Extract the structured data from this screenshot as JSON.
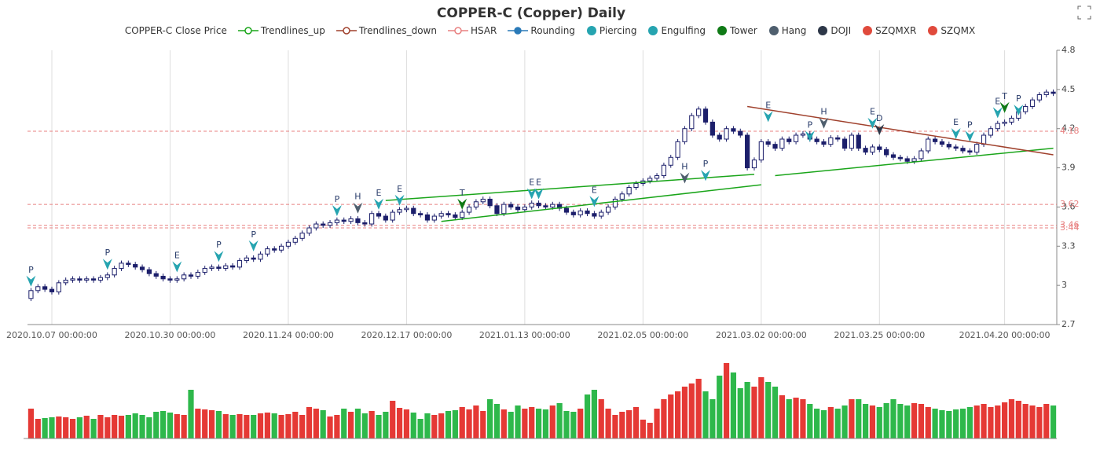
{
  "chart_data": {
    "type": "candlestick",
    "title": "COPPER-C (Copper) Daily",
    "legend": [
      {
        "name": "COPPER-C Close Price",
        "icon": "none"
      },
      {
        "name": "Trendlines_up",
        "color": "#1aa51a",
        "icon": "line-ring"
      },
      {
        "name": "Trendlines_down",
        "color": "#a0412d",
        "icon": "line-ring"
      },
      {
        "name": "HSAR",
        "color": "#e88080",
        "icon": "line-ring"
      },
      {
        "name": "Rounding",
        "color": "#2a7ab8",
        "icon": "line-dot"
      },
      {
        "name": "Piercing",
        "color": "#26a4b0",
        "icon": "dot"
      },
      {
        "name": "Engulfing",
        "color": "#26a4b0",
        "icon": "dot"
      },
      {
        "name": "Tower",
        "color": "#0f7a16",
        "icon": "dot"
      },
      {
        "name": "Hang",
        "color": "#4f5f6e",
        "icon": "dot"
      },
      {
        "name": "DOJI",
        "color": "#2d3748",
        "icon": "dot"
      },
      {
        "name": "SZQMXR",
        "color": "#e04a3c",
        "icon": "dot"
      },
      {
        "name": "SZQMX",
        "color": "#e04a3c",
        "icon": "dot"
      }
    ],
    "categories": [
      null,
      null,
      null,
      "2020.10.07 00:00:00",
      null,
      null,
      null,
      null,
      null,
      null,
      null,
      null,
      null,
      null,
      null,
      null,
      null,
      null,
      null,
      null,
      "2020.10.30 00:00:00",
      null,
      null,
      null,
      null,
      null,
      null,
      null,
      null,
      null,
      null,
      null,
      null,
      null,
      null,
      null,
      null,
      "2020.11.24 00:00:00",
      null,
      null,
      null,
      null,
      null,
      null,
      null,
      null,
      null,
      null,
      null,
      null,
      null,
      null,
      null,
      null,
      "2020.12.17 00:00:00",
      null,
      null,
      null,
      null,
      null,
      null,
      null,
      null,
      null,
      null,
      null,
      null,
      null,
      null,
      null,
      null,
      "2021.01.13 00:00:00",
      null,
      null,
      null,
      null,
      null,
      null,
      null,
      null,
      null,
      null,
      null,
      null,
      null,
      null,
      null,
      null,
      "2021.02.05 00:00:00",
      null,
      null,
      null,
      null,
      null,
      null,
      null,
      null,
      null,
      null,
      null,
      null,
      null,
      null,
      null,
      null,
      "2021.03.02 00:00:00",
      null,
      null,
      null,
      null,
      null,
      null,
      null,
      null,
      null,
      null,
      null,
      null,
      null,
      null,
      null,
      null,
      "2021.03.25 00:00:00",
      null,
      null,
      null,
      null,
      null,
      null,
      null,
      null,
      null,
      null,
      null,
      null,
      null,
      null,
      null,
      null,
      null,
      "2021.04.20 00:00:00",
      null,
      null,
      null,
      null,
      null,
      null,
      null
    ],
    "open": [
      2.9,
      2.96,
      2.99,
      2.97,
      2.95,
      3.02,
      3.04,
      3.05,
      3.04,
      3.05,
      3.04,
      3.06,
      3.08,
      3.13,
      3.17,
      3.16,
      3.14,
      3.12,
      3.09,
      3.07,
      3.05,
      3.04,
      3.05,
      3.08,
      3.07,
      3.1,
      3.13,
      3.14,
      3.13,
      3.15,
      3.14,
      3.19,
      3.21,
      3.2,
      3.24,
      3.28,
      3.27,
      3.3,
      3.33,
      3.36,
      3.4,
      3.44,
      3.47,
      3.46,
      3.48,
      3.5,
      3.49,
      3.51,
      3.48,
      3.47,
      3.55,
      3.53,
      3.5,
      3.56,
      3.58,
      3.59,
      3.55,
      3.54,
      3.5,
      3.53,
      3.55,
      3.54,
      3.52,
      3.56,
      3.6,
      3.64,
      3.66,
      3.61,
      3.55,
      3.62,
      3.6,
      3.58,
      3.6,
      3.63,
      3.61,
      3.6,
      3.62,
      3.59,
      3.56,
      3.54,
      3.57,
      3.55,
      3.53,
      3.56,
      3.6,
      3.66,
      3.7,
      3.75,
      3.78,
      3.8,
      3.82,
      3.84,
      3.92,
      3.98,
      4.1,
      4.2,
      4.3,
      4.35,
      4.25,
      4.15,
      4.12,
      4.2,
      4.18,
      4.15,
      3.9,
      3.96,
      4.1,
      4.08,
      4.05,
      4.12,
      4.1,
      4.15,
      4.16,
      4.12,
      4.1,
      4.08,
      4.13,
      4.12,
      4.05,
      4.15,
      4.05,
      4.02,
      4.06,
      4.04,
      4.0,
      3.98,
      3.97,
      3.95,
      3.97,
      4.03,
      4.12,
      4.1,
      4.08,
      4.06,
      4.05,
      4.03,
      4.02,
      4.08,
      4.15,
      4.2,
      4.24,
      4.25,
      4.28,
      4.33,
      4.37,
      4.42,
      4.46,
      4.48
    ],
    "high": [
      2.98,
      3.01,
      3.01,
      2.99,
      3.04,
      3.06,
      3.07,
      3.07,
      3.07,
      3.07,
      3.08,
      3.1,
      3.15,
      3.19,
      3.19,
      3.18,
      3.16,
      3.14,
      3.11,
      3.09,
      3.07,
      3.07,
      3.1,
      3.1,
      3.12,
      3.15,
      3.16,
      3.16,
      3.17,
      3.17,
      3.21,
      3.23,
      3.23,
      3.26,
      3.3,
      3.3,
      3.32,
      3.35,
      3.38,
      3.42,
      3.46,
      3.49,
      3.49,
      3.5,
      3.52,
      3.52,
      3.53,
      3.53,
      3.5,
      3.57,
      3.57,
      3.55,
      3.58,
      3.6,
      3.61,
      3.61,
      3.57,
      3.56,
      3.55,
      3.57,
      3.57,
      3.56,
      3.58,
      3.62,
      3.66,
      3.68,
      3.68,
      3.63,
      3.64,
      3.64,
      3.62,
      3.62,
      3.65,
      3.65,
      3.63,
      3.64,
      3.64,
      3.61,
      3.58,
      3.59,
      3.59,
      3.57,
      3.58,
      3.62,
      3.68,
      3.72,
      3.77,
      3.8,
      3.82,
      3.84,
      3.86,
      3.94,
      4.0,
      4.12,
      4.22,
      4.32,
      4.37,
      4.37,
      4.27,
      4.17,
      4.22,
      4.22,
      4.2,
      4.17,
      3.98,
      4.12,
      4.12,
      4.1,
      4.14,
      4.14,
      4.17,
      4.18,
      4.18,
      4.14,
      4.12,
      4.15,
      4.15,
      4.14,
      4.17,
      4.17,
      4.07,
      4.08,
      4.08,
      4.06,
      4.02,
      4.0,
      3.99,
      3.99,
      4.05,
      4.14,
      4.14,
      4.12,
      4.1,
      4.08,
      4.07,
      4.05,
      4.1,
      4.17,
      4.22,
      4.26,
      4.27,
      4.3,
      4.35,
      4.39,
      4.44,
      4.48,
      4.5,
      4.5
    ],
    "low": [
      2.88,
      2.94,
      2.95,
      2.93,
      2.93,
      3.0,
      3.02,
      3.02,
      3.02,
      3.02,
      3.02,
      3.04,
      3.06,
      3.11,
      3.14,
      3.12,
      3.1,
      3.07,
      3.05,
      3.03,
      3.02,
      3.02,
      3.03,
      3.05,
      3.05,
      3.08,
      3.11,
      3.11,
      3.11,
      3.12,
      3.12,
      3.17,
      3.18,
      3.18,
      3.22,
      3.25,
      3.25,
      3.28,
      3.31,
      3.34,
      3.38,
      3.42,
      3.44,
      3.44,
      3.46,
      3.47,
      3.47,
      3.46,
      3.45,
      3.45,
      3.51,
      3.48,
      3.48,
      3.54,
      3.56,
      3.53,
      3.52,
      3.48,
      3.48,
      3.51,
      3.52,
      3.5,
      3.5,
      3.54,
      3.58,
      3.62,
      3.59,
      3.53,
      3.53,
      3.58,
      3.56,
      3.56,
      3.58,
      3.59,
      3.58,
      3.58,
      3.57,
      3.54,
      3.52,
      3.52,
      3.53,
      3.51,
      3.51,
      3.54,
      3.58,
      3.64,
      3.68,
      3.73,
      3.76,
      3.78,
      3.8,
      3.82,
      3.9,
      3.96,
      4.08,
      4.18,
      4.28,
      4.23,
      4.13,
      4.1,
      4.1,
      4.16,
      4.13,
      3.88,
      3.88,
      3.94,
      4.06,
      4.03,
      4.03,
      4.08,
      4.08,
      4.13,
      4.1,
      4.08,
      4.06,
      4.06,
      4.1,
      4.03,
      4.03,
      4.03,
      4.0,
      4.0,
      4.02,
      3.98,
      3.96,
      3.95,
      3.93,
      3.93,
      3.95,
      4.01,
      4.08,
      4.06,
      4.04,
      4.03,
      4.01,
      4.0,
      4.0,
      4.06,
      4.13,
      4.18,
      4.22,
      4.23,
      4.26,
      4.31,
      4.35,
      4.4,
      4.44,
      4.45
    ],
    "close": [
      2.96,
      2.99,
      2.97,
      2.95,
      3.02,
      3.04,
      3.05,
      3.04,
      3.05,
      3.04,
      3.06,
      3.08,
      3.13,
      3.17,
      3.16,
      3.14,
      3.12,
      3.09,
      3.07,
      3.05,
      3.04,
      3.05,
      3.08,
      3.07,
      3.1,
      3.13,
      3.14,
      3.13,
      3.15,
      3.14,
      3.19,
      3.21,
      3.2,
      3.24,
      3.28,
      3.27,
      3.3,
      3.33,
      3.36,
      3.4,
      3.44,
      3.47,
      3.46,
      3.48,
      3.5,
      3.49,
      3.51,
      3.48,
      3.47,
      3.55,
      3.53,
      3.5,
      3.56,
      3.58,
      3.59,
      3.55,
      3.54,
      3.5,
      3.53,
      3.55,
      3.54,
      3.52,
      3.56,
      3.6,
      3.64,
      3.66,
      3.61,
      3.55,
      3.62,
      3.6,
      3.58,
      3.6,
      3.63,
      3.61,
      3.6,
      3.62,
      3.59,
      3.56,
      3.54,
      3.57,
      3.55,
      3.53,
      3.56,
      3.6,
      3.66,
      3.7,
      3.75,
      3.78,
      3.8,
      3.82,
      3.84,
      3.92,
      3.98,
      4.1,
      4.2,
      4.3,
      4.35,
      4.25,
      4.15,
      4.12,
      4.2,
      4.18,
      4.15,
      3.9,
      3.96,
      4.1,
      4.08,
      4.05,
      4.12,
      4.1,
      4.15,
      4.16,
      4.12,
      4.1,
      4.08,
      4.13,
      4.12,
      4.05,
      4.15,
      4.05,
      4.02,
      4.06,
      4.04,
      4.0,
      3.98,
      3.97,
      3.95,
      3.97,
      4.03,
      4.12,
      4.1,
      4.08,
      4.06,
      4.05,
      4.03,
      4.02,
      4.08,
      4.15,
      4.2,
      4.24,
      4.25,
      4.28,
      4.33,
      4.37,
      4.42,
      4.46,
      4.48,
      4.47
    ],
    "volume": [
      38,
      25,
      26,
      27,
      28,
      27,
      25,
      27,
      29,
      25,
      30,
      27,
      30,
      29,
      30,
      32,
      30,
      27,
      34,
      35,
      33,
      31,
      30,
      62,
      38,
      37,
      36,
      35,
      31,
      30,
      31,
      30,
      30,
      32,
      33,
      32,
      30,
      31,
      34,
      30,
      40,
      38,
      36,
      28,
      30,
      38,
      34,
      38,
      32,
      35,
      30,
      34,
      48,
      39,
      37,
      33,
      25,
      32,
      30,
      32,
      35,
      36,
      40,
      37,
      42,
      35,
      50,
      44,
      37,
      34,
      42,
      38,
      40,
      38,
      37,
      42,
      45,
      35,
      34,
      38,
      56,
      62,
      50,
      38,
      30,
      34,
      36,
      40,
      24,
      20,
      38,
      50,
      56,
      60,
      66,
      70,
      76,
      60,
      50,
      80,
      96,
      84,
      64,
      72,
      66,
      78,
      72,
      66,
      55,
      50,
      52,
      50,
      44,
      38,
      36,
      40,
      38,
      42,
      50,
      50,
      44,
      42,
      40,
      45,
      50,
      44,
      42,
      45,
      44,
      40,
      38,
      36,
      35,
      37,
      38,
      40,
      42,
      44,
      40,
      42,
      46,
      50,
      48,
      44,
      42,
      40,
      44,
      42
    ],
    "up_color": "#1c1f6b",
    "down_color": "#1c1f6b",
    "volume_up_color": "#e53935",
    "volume_down_color": "#2eb84b",
    "ylim": [
      2.7,
      4.8
    ],
    "yticks": [
      2.7,
      3,
      3.3,
      3.6,
      3.9,
      4.2,
      4.5,
      4.8
    ],
    "hsar": [
      4.18,
      3.62,
      3.46,
      3.44
    ],
    "trendlines_up": [
      [
        51,
        3.65,
        104,
        3.85
      ],
      [
        59,
        3.49,
        105,
        3.77
      ],
      [
        107,
        3.84,
        147,
        4.05
      ]
    ],
    "trendlines_down": [
      [
        103,
        4.37,
        147,
        4.0
      ]
    ],
    "markers": [
      {
        "i": 0,
        "y": 2.99,
        "text": "P",
        "legend": 5
      },
      {
        "i": 11,
        "y": 3.12,
        "text": "P",
        "legend": 5
      },
      {
        "i": 21,
        "y": 3.1,
        "text": "E",
        "legend": 6
      },
      {
        "i": 27,
        "y": 3.18,
        "text": "P",
        "legend": 5
      },
      {
        "i": 32,
        "y": 3.26,
        "text": "P",
        "legend": 5
      },
      {
        "i": 44,
        "y": 3.53,
        "text": "P",
        "legend": 5
      },
      {
        "i": 47,
        "y": 3.55,
        "text": "H",
        "legend": 8
      },
      {
        "i": 50,
        "y": 3.58,
        "text": "E",
        "legend": 6
      },
      {
        "i": 53,
        "y": 3.61,
        "text": "E",
        "legend": 6
      },
      {
        "i": 62,
        "y": 3.58,
        "text": "T",
        "legend": 7
      },
      {
        "i": 72,
        "y": 3.66,
        "text": "E",
        "legend": 6
      },
      {
        "i": 73,
        "y": 3.66,
        "text": "E",
        "legend": 6
      },
      {
        "i": 81,
        "y": 3.6,
        "text": "E",
        "legend": 6
      },
      {
        "i": 94,
        "y": 3.78,
        "text": "H",
        "legend": 8
      },
      {
        "i": 97,
        "y": 3.8,
        "text": "P",
        "legend": 5
      },
      {
        "i": 106,
        "y": 4.25,
        "text": "E",
        "legend": 6
      },
      {
        "i": 112,
        "y": 4.1,
        "text": "P",
        "legend": 5
      },
      {
        "i": 114,
        "y": 4.2,
        "text": "H",
        "legend": 8
      },
      {
        "i": 121,
        "y": 4.2,
        "text": "E",
        "legend": 6
      },
      {
        "i": 122,
        "y": 4.15,
        "text": "D",
        "legend": 9
      },
      {
        "i": 133,
        "y": 4.12,
        "text": "E",
        "legend": 6
      },
      {
        "i": 135,
        "y": 4.1,
        "text": "P",
        "legend": 5
      },
      {
        "i": 139,
        "y": 4.28,
        "text": "E",
        "legend": 6
      },
      {
        "i": 140,
        "y": 4.32,
        "text": "T",
        "legend": 7
      },
      {
        "i": 142,
        "y": 4.3,
        "text": "P",
        "legend": 5
      }
    ]
  }
}
